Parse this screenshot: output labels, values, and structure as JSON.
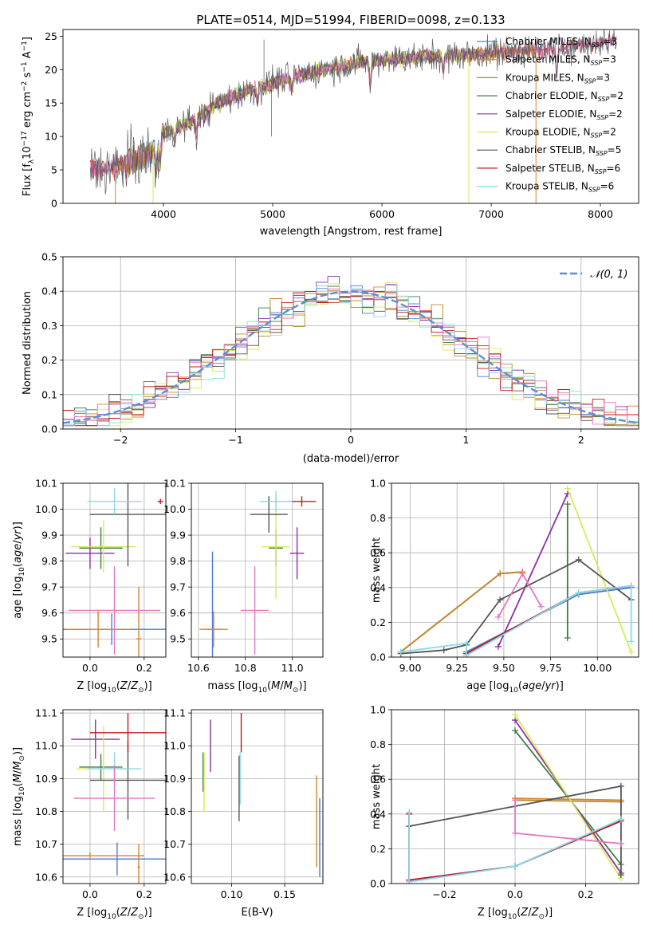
{
  "figure_title": "PLATE=0514, MJD=51994, FIBERID=0098, z=0.133",
  "colors": {
    "Chabrier MILES": "#4c7cd0",
    "Salpeter MILES": "#d9822b",
    "Kroupa MILES": "#b8862b",
    "Chabrier ELODIE": "#3f7d3f",
    "Salpeter ELODIE": "#8e2ea8",
    "Kroupa ELODIE": "#d8ea5a",
    "Chabrier STELIB": "#555555",
    "Salpeter STELIB": "#c0181e",
    "Kroupa STELIB": "#86dbe6",
    "pink": "#e377c2",
    "normal": "#5b8fd6"
  },
  "chart_data": [
    {
      "type": "line",
      "panel": "spectrum",
      "title": "PLATE=0514, MJD=51994, FIBERID=0098, z=0.133",
      "xlabel": "wavelength [Angstrom, rest frame]",
      "ylabel": "Flux [f_λ 10^-17 erg cm^-2 s^-1 A^-1]",
      "ylabel_parts": {
        "a": "Flux [f",
        "b": "λ",
        "c": "10",
        "d": "−17",
        "e": " erg cm",
        "f": "−2",
        "g": " s",
        "h": "−1",
        "i": " A",
        "j": "−1",
        "k": "]"
      },
      "xlim": [
        3080,
        8350
      ],
      "ylim": [
        0,
        26
      ],
      "xticks": [
        4000,
        5000,
        6000,
        7000,
        8000
      ],
      "yticks": [
        0,
        5,
        10,
        15,
        20,
        25
      ],
      "continuum": [
        [
          3330,
          5
        ],
        [
          3600,
          5.5
        ],
        [
          3800,
          7
        ],
        [
          3950,
          8
        ],
        [
          4000,
          10.5
        ],
        [
          4300,
          12.5
        ],
        [
          4500,
          15
        ],
        [
          4800,
          17
        ],
        [
          5200,
          19
        ],
        [
          5600,
          20.5
        ],
        [
          6000,
          21.5
        ],
        [
          6500,
          22
        ],
        [
          7000,
          22.5
        ],
        [
          7500,
          23
        ],
        [
          8000,
          24
        ],
        [
          8150,
          24.5
        ]
      ],
      "legend": [
        {
          "base": "Chabrier MILES, N",
          "sub": "SSP",
          "tail": "=3"
        },
        {
          "base": "Salpeter MILES, N",
          "sub": "SSP",
          "tail": "=3"
        },
        {
          "base": "Kroupa MILES, N",
          "sub": "SSP",
          "tail": "=3"
        },
        {
          "base": "Chabrier ELODIE, N",
          "sub": "SSP",
          "tail": "=2"
        },
        {
          "base": "Salpeter ELODIE, N",
          "sub": "SSP",
          "tail": "=2"
        },
        {
          "base": "Kroupa ELODIE, N",
          "sub": "SSP",
          "tail": "=2"
        },
        {
          "base": "Chabrier STELIB, N",
          "sub": "SSP",
          "tail": "=5"
        },
        {
          "base": "Salpeter STELIB, N",
          "sub": "SSP",
          "tail": "=6"
        },
        {
          "base": "Kroupa STELIB, N",
          "sub": "SSP",
          "tail": "=6"
        }
      ],
      "legend_placement": "top-right"
    },
    {
      "type": "histogram",
      "panel": "residuals",
      "xlabel": "(data-model)/error",
      "ylabel": "Normed distribution",
      "xlim": [
        -2.5,
        2.5
      ],
      "ylim": [
        0,
        0.5
      ],
      "xticks": [
        -2,
        -1,
        0,
        1,
        2
      ],
      "yticks": [
        0,
        0.1,
        0.2,
        0.3,
        0.4,
        0.5
      ],
      "grid": true,
      "bin_width": 0.1,
      "legend": "𝒩(0, 1)",
      "legend_placement": "top-right"
    },
    {
      "type": "scatter",
      "panel": "age_vs_Z",
      "xlabel": "Z [log10(Z/Z⊙)]",
      "ylabel": "age [log10(age/yr)]",
      "xlim": [
        -0.1,
        0.28
      ],
      "ylim": [
        9.43,
        10.1
      ],
      "xticks": [
        0.0,
        0.2
      ],
      "yticks": [
        9.5,
        9.6,
        9.7,
        9.8,
        9.9,
        10.0,
        10.1
      ],
      "grid": true,
      "points": [
        {
          "series": "Chabrier MILES",
          "x": 0.08,
          "y": 9.537,
          "xerr": 0.25,
          "yerr": 0.06
        },
        {
          "series": "Salpeter MILES",
          "x": 0.03,
          "y": 9.537,
          "xerr": 0.12,
          "yerr": 0.07
        },
        {
          "series": "Salpeter MILES",
          "x": 0.18,
          "y": 9.5,
          "xerr": 0.01,
          "yerr": 0.2
        },
        {
          "series": "Chabrier ELODIE",
          "x": 0.04,
          "y": 9.85,
          "xerr": 0.08,
          "yerr": 0.08
        },
        {
          "series": "Salpeter ELODIE",
          "x": 0.0,
          "y": 9.83,
          "xerr": 0.09,
          "yerr": 0.06
        },
        {
          "series": "Kroupa ELODIE",
          "x": 0.05,
          "y": 9.855,
          "xerr": 0.12,
          "yerr": 0.1
        },
        {
          "series": "Chabrier STELIB",
          "x": 0.14,
          "y": 9.98,
          "xerr": 0.14,
          "yerr": 0.2
        },
        {
          "series": "Salpeter STELIB",
          "x": 0.26,
          "y": 10.03,
          "xerr": 0.01,
          "yerr": 0.01
        },
        {
          "series": "Kroupa STELIB",
          "x": 0.09,
          "y": 10.03,
          "xerr": 0.1,
          "yerr": 0.05
        },
        {
          "series": "pink",
          "x": 0.09,
          "y": 9.61,
          "xerr": 0.17,
          "yerr": 0.17
        }
      ]
    },
    {
      "type": "scatter",
      "panel": "age_vs_mass",
      "xlabel": "mass [log10(M/M⊙)]",
      "ylabel": "",
      "xlim": [
        10.57,
        11.13
      ],
      "ylim": [
        9.43,
        10.1
      ],
      "xticks": [
        10.6,
        10.8,
        11.0
      ],
      "yticks": [
        9.5,
        9.6,
        9.7,
        9.8,
        9.9,
        10.0,
        10.1
      ],
      "grid": true,
      "points": [
        {
          "series": "Chabrier MILES",
          "x": 10.66,
          "y": 9.537,
          "xerr": 0.03,
          "yerr": 0.3
        },
        {
          "series": "Salpeter MILES",
          "x": 10.665,
          "y": 9.537,
          "xerr": 0.06,
          "yerr": 0.07
        },
        {
          "series": "Chabrier ELODIE",
          "x": 10.93,
          "y": 9.85,
          "xerr": 0.03,
          "yerr": 0.07
        },
        {
          "series": "Salpeter ELODIE",
          "x": 11.02,
          "y": 9.83,
          "xerr": 0.03,
          "yerr": 0.1
        },
        {
          "series": "Kroupa ELODIE",
          "x": 10.93,
          "y": 9.855,
          "xerr": 0.06,
          "yerr": 0.2
        },
        {
          "series": "Chabrier STELIB",
          "x": 10.9,
          "y": 9.98,
          "xerr": 0.08,
          "yerr": 0.07
        },
        {
          "series": "Salpeter STELIB",
          "x": 11.04,
          "y": 10.03,
          "xerr": 0.06,
          "yerr": 0.02
        },
        {
          "series": "Kroupa STELIB",
          "x": 10.93,
          "y": 10.03,
          "xerr": 0.07,
          "yerr": 0.04
        },
        {
          "series": "pink",
          "x": 10.84,
          "y": 9.61,
          "xerr": 0.06,
          "yerr": 0.17
        }
      ]
    },
    {
      "type": "line",
      "panel": "weight_vs_age",
      "xlabel": "age [log10(age/yr)]",
      "ylabel": "mass weight",
      "xlim": [
        8.9,
        10.22
      ],
      "ylim": [
        0,
        1.0
      ],
      "xticks": [
        9.0,
        9.25,
        9.5,
        9.75,
        10.0
      ],
      "yticks": [
        0,
        0.2,
        0.4,
        0.6,
        0.8,
        1.0
      ],
      "grid": true,
      "series": [
        {
          "name": "Chabrier MILES",
          "x": [
            9.3,
            9.9,
            10.18
          ],
          "y": [
            0.03,
            0.36,
            0.4
          ]
        },
        {
          "name": "Salpeter MILES",
          "x": [
            8.95,
            9.48,
            9.6
          ],
          "y": [
            0.03,
            0.48,
            0.49
          ]
        },
        {
          "name": "Kroupa MILES",
          "x": [
            8.95,
            9.48,
            9.6
          ],
          "y": [
            0.03,
            0.48,
            0.49
          ]
        },
        {
          "name": "Chabrier ELODIE",
          "x": [
            9.84,
            9.84
          ],
          "y": [
            0.11,
            0.88
          ]
        },
        {
          "name": "Salpeter ELODIE",
          "x": [
            9.47,
            9.84
          ],
          "y": [
            0.06,
            0.94
          ]
        },
        {
          "name": "Kroupa ELODIE",
          "x": [
            9.84,
            10.18
          ],
          "y": [
            0.97,
            0.03
          ]
        },
        {
          "name": "Chabrier STELIB",
          "x": [
            8.95,
            9.18,
            9.3,
            9.48,
            9.9,
            10.18
          ],
          "y": [
            0.02,
            0.04,
            0.07,
            0.33,
            0.56,
            0.33
          ]
        },
        {
          "name": "Salpeter STELIB",
          "x": [
            9.3,
            9.9,
            10.18
          ],
          "y": [
            0.02,
            0.37,
            0.41
          ]
        },
        {
          "name": "Kroupa STELIB",
          "x": [
            8.95,
            9.3,
            9.3,
            9.9,
            10.18,
            10.18
          ],
          "y": [
            0.03,
            0.08,
            0.01,
            0.37,
            0.41,
            0.09
          ]
        },
        {
          "name": "pink",
          "x": [
            9.47,
            9.6,
            9.7
          ],
          "y": [
            0.23,
            0.48,
            0.29
          ]
        }
      ]
    },
    {
      "type": "scatter",
      "panel": "mass_vs_Z",
      "xlabel": "Z [log10(Z/Z⊙)]",
      "ylabel": "mass [log10(M/M⊙)]",
      "xlim": [
        -0.1,
        0.28
      ],
      "ylim": [
        10.58,
        11.11
      ],
      "xticks": [
        0.0,
        0.2
      ],
      "yticks": [
        10.6,
        10.7,
        10.8,
        10.9,
        11.0,
        11.1
      ],
      "grid": true,
      "points": [
        {
          "series": "Chabrier MILES",
          "x": 0.1,
          "y": 10.655,
          "xerr": 0.2,
          "yerr": 0.05
        },
        {
          "series": "Salpeter MILES",
          "x": 0.0,
          "y": 10.665,
          "xerr": 0.2,
          "yerr": 0.01
        },
        {
          "series": "Salpeter MILES",
          "x": 0.18,
          "y": 10.63,
          "xerr": 0.005,
          "yerr": 0.07
        },
        {
          "series": "Chabrier ELODIE",
          "x": 0.04,
          "y": 10.935,
          "xerr": 0.08,
          "yerr": 0.04
        },
        {
          "series": "Salpeter ELODIE",
          "x": 0.02,
          "y": 11.02,
          "xerr": 0.09,
          "yerr": 0.06
        },
        {
          "series": "Kroupa ELODIE",
          "x": 0.05,
          "y": 10.93,
          "xerr": 0.1,
          "yerr": 0.13
        },
        {
          "series": "Chabrier STELIB",
          "x": 0.14,
          "y": 10.895,
          "xerr": 0.14,
          "yerr": 0.12
        },
        {
          "series": "Salpeter STELIB",
          "x": 0.14,
          "y": 11.04,
          "xerr": 0.14,
          "yerr": 0.06
        },
        {
          "series": "Kroupa STELIB",
          "x": 0.09,
          "y": 10.93,
          "xerr": 0.1,
          "yerr": 0.05
        },
        {
          "series": "pink",
          "x": 0.09,
          "y": 10.84,
          "xerr": 0.15,
          "yerr": 0.1
        }
      ]
    },
    {
      "type": "scatter",
      "panel": "mass_vs_ebv",
      "xlabel": "E(B-V)",
      "ylabel": "",
      "xlim": [
        0.062,
        0.186
      ],
      "ylim": [
        10.58,
        11.11
      ],
      "xticks": [
        0.1,
        0.15
      ],
      "yticks": [
        10.6,
        10.7,
        10.8,
        10.9,
        11.0,
        11.1
      ],
      "grid": true,
      "points": [
        {
          "series": "Chabrier MILES",
          "x": 0.183,
          "y": 10.72,
          "xerr": 0,
          "yerr": 0.12
        },
        {
          "series": "Salpeter MILES",
          "x": 0.18,
          "y": 10.77,
          "xerr": 0,
          "yerr": 0.14
        },
        {
          "series": "Chabrier ELODIE",
          "x": 0.073,
          "y": 10.92,
          "xerr": 0,
          "yerr": 0.06
        },
        {
          "series": "Salpeter ELODIE",
          "x": 0.08,
          "y": 11.0,
          "xerr": 0,
          "yerr": 0.08
        },
        {
          "series": "Kroupa ELODIE",
          "x": 0.074,
          "y": 10.89,
          "xerr": 0,
          "yerr": 0.09
        },
        {
          "series": "Chabrier STELIB",
          "x": 0.107,
          "y": 10.87,
          "xerr": 0,
          "yerr": 0.1
        },
        {
          "series": "Salpeter STELIB",
          "x": 0.109,
          "y": 11.04,
          "xerr": 0,
          "yerr": 0.06
        },
        {
          "series": "Kroupa STELIB",
          "x": 0.108,
          "y": 10.9,
          "xerr": 0,
          "yerr": 0.08
        }
      ]
    },
    {
      "type": "line",
      "panel": "weight_vs_Z",
      "xlabel": "Z [log10(Z/Z⊙)]",
      "ylabel": "mass weight",
      "xlim": [
        -0.35,
        0.35
      ],
      "ylim": [
        0,
        1.0
      ],
      "xticks": [
        -0.2,
        0.0,
        0.2
      ],
      "yticks": [
        0,
        0.2,
        0.4,
        0.6,
        0.8,
        1.0
      ],
      "grid": true,
      "series": [
        {
          "name": "Chabrier MILES",
          "x": [
            -0.3,
            -0.3,
            0.0,
            0.3
          ],
          "y": [
            0.41,
            0.02,
            0.1,
            0.36
          ]
        },
        {
          "name": "Salpeter MILES",
          "x": [
            0.0,
            0.3
          ],
          "y": [
            0.49,
            0.48
          ]
        },
        {
          "name": "Kroupa MILES",
          "x": [
            0.0,
            0.3
          ],
          "y": [
            0.48,
            0.47
          ]
        },
        {
          "name": "Chabrier ELODIE",
          "x": [
            0.0,
            0.3
          ],
          "y": [
            0.88,
            0.11
          ]
        },
        {
          "name": "Salpeter ELODIE",
          "x": [
            0.0,
            0.3
          ],
          "y": [
            0.94,
            0.06
          ]
        },
        {
          "name": "Kroupa ELODIE",
          "x": [
            0.0,
            0.3
          ],
          "y": [
            0.97,
            0.03
          ]
        },
        {
          "name": "Chabrier STELIB",
          "x": [
            -0.3,
            0.3,
            0.3
          ],
          "y": [
            0.33,
            0.56,
            0.05
          ]
        },
        {
          "name": "Salpeter STELIB",
          "x": [
            -0.3,
            -0.3,
            0.0,
            0.3
          ],
          "y": [
            0.4,
            0.02,
            0.1,
            0.36
          ]
        },
        {
          "name": "Kroupa STELIB",
          "x": [
            -0.3,
            -0.3,
            0.0,
            0.3
          ],
          "y": [
            0.41,
            0.01,
            0.1,
            0.37
          ]
        },
        {
          "name": "pink",
          "x": [
            0.0,
            0.0,
            0.3
          ],
          "y": [
            0.48,
            0.29,
            0.23
          ]
        }
      ]
    }
  ]
}
